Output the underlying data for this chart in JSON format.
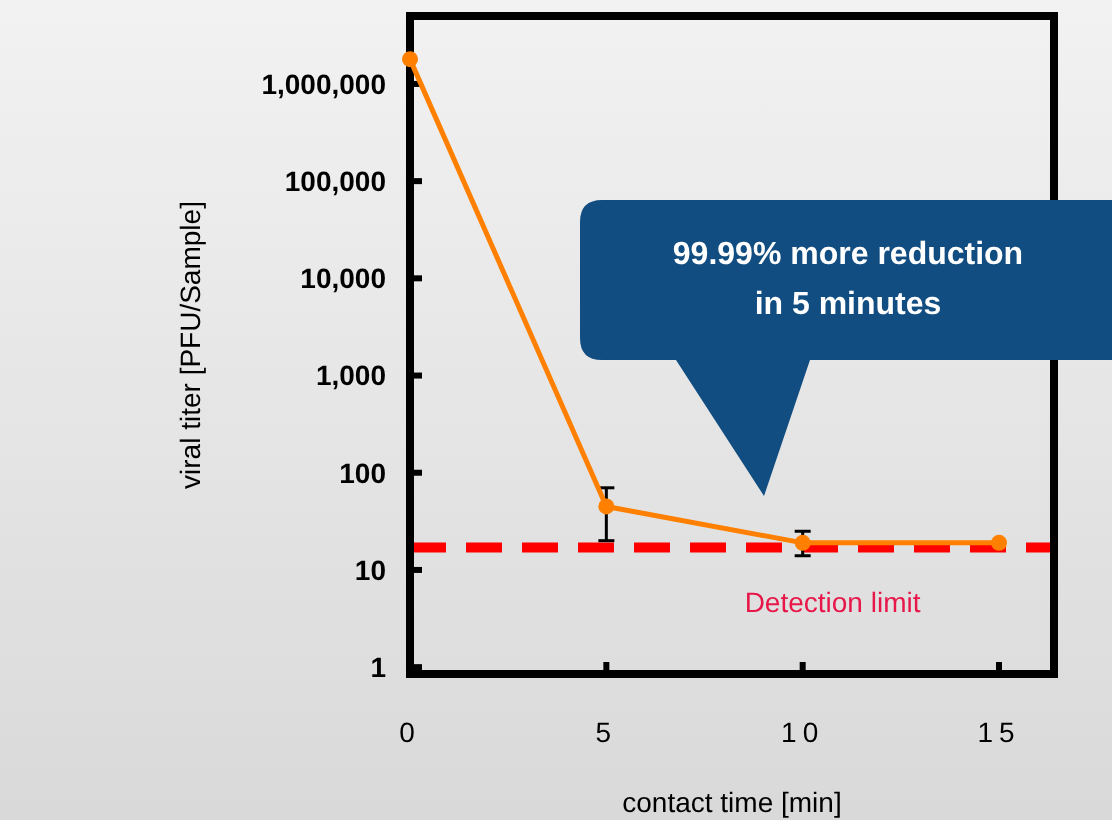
{
  "chart_data": {
    "type": "line",
    "xlabel": "contact time [min]",
    "ylabel": "viral titer [PFU/Sample]",
    "x": [
      0,
      5,
      10,
      15
    ],
    "series": [
      {
        "color": "#ff8000",
        "values": [
          1800000,
          45,
          19,
          19
        ],
        "errors": [
          null,
          [
            20,
            70
          ],
          [
            14,
            25
          ],
          null
        ]
      }
    ],
    "log": "y",
    "xlim": [
      0,
      16.4
    ],
    "xticks": [
      0,
      5,
      10,
      15
    ],
    "ylim": [
      0.85,
      5000000
    ],
    "yticks": [
      1,
      10,
      100,
      {
        "value": 1000,
        "label": "1,000"
      },
      {
        "value": 10000,
        "label": "10,000"
      },
      {
        "value": 100000,
        "label": "100,000"
      },
      {
        "value": 1000000,
        "label": "1,000,000"
      }
    ],
    "marker": "circle",
    "line_style": "solid",
    "grid": false,
    "ref_lines": [
      {
        "axis": "y",
        "value": 17,
        "label": "Detection limit",
        "color": "#ff0000",
        "line_style": "dashed"
      }
    ],
    "annotations": [
      "99.99% more reduction in 5 minutes"
    ]
  }
}
